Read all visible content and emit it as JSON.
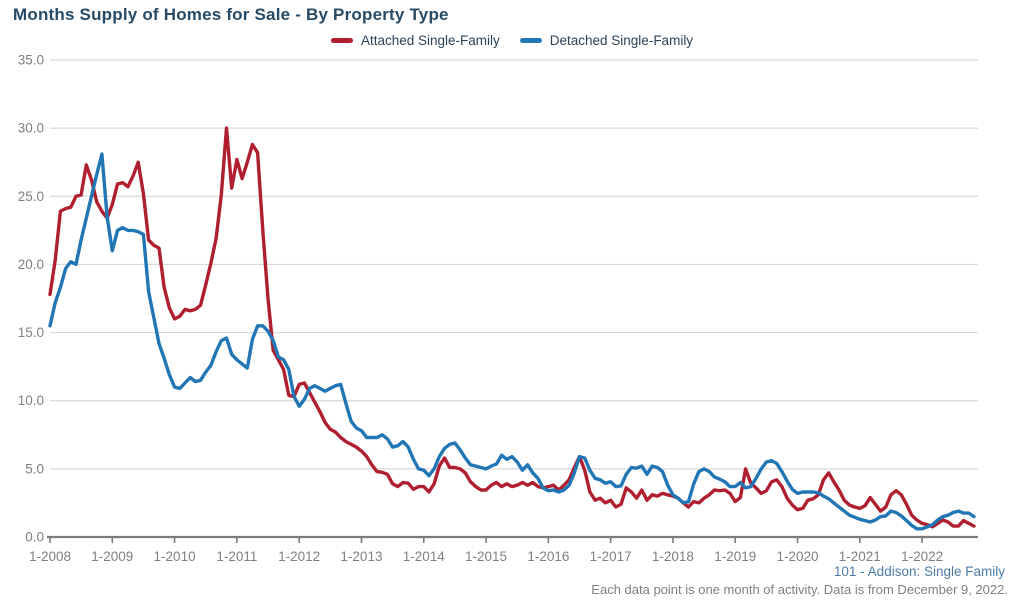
{
  "title": "Months Supply of Homes for Sale - By Property Type",
  "legend": [
    {
      "label": "Attached Single-Family",
      "color": "#b01f30"
    },
    {
      "label": "Detached Single-Family",
      "color": "#2176b5"
    }
  ],
  "footer": {
    "line1": "101 - Addison: Single Family",
    "line2": "Each data point is one month of activity. Data is from December 9, 2022."
  },
  "colors": {
    "attached": "#b01f30",
    "detached": "#2176b5",
    "gridline": "#d9d9d9",
    "axis": "#7a7a7a",
    "axis_text": "#808080",
    "title_text": "#274a66"
  },
  "chart_data": {
    "type": "line",
    "title": "Months Supply of Homes for Sale - By Property Type",
    "xlabel": "",
    "ylabel": "",
    "x_unit": "month",
    "x_range": [
      "1-2008",
      "11-2022"
    ],
    "x_tick_labels": [
      "1-2008",
      "1-2009",
      "1-2010",
      "1-2011",
      "1-2012",
      "1-2013",
      "1-2014",
      "1-2015",
      "1-2016",
      "1-2017",
      "1-2018",
      "1-2019",
      "1-2020",
      "1-2021",
      "1-2022"
    ],
    "y_ticks": [
      0,
      5,
      10,
      15,
      20,
      25,
      30,
      35
    ],
    "y_tick_labels": [
      "0.0",
      "5.0",
      "10.0",
      "15.0",
      "20.0",
      "25.0",
      "30.0",
      "35.0"
    ],
    "ylim": [
      0,
      35
    ],
    "grid": true,
    "legend_position": "top-center",
    "series": [
      {
        "name": "Attached Single-Family",
        "color": "#b01f30",
        "values": [
          17.8,
          20.3,
          23.9,
          24.1,
          24.2,
          25,
          25.1,
          27.3,
          26.2,
          24.6,
          23.9,
          23.4,
          24.4,
          25.9,
          26,
          25.7,
          26.5,
          27.5,
          25.2,
          21.8,
          21.4,
          21.2,
          18.3,
          16.8,
          16,
          16.2,
          16.7,
          16.6,
          16.7,
          17,
          18.5,
          20.1,
          21.9,
          25.1,
          30,
          25.6,
          27.7,
          26.3,
          27.5,
          28.8,
          28.2,
          22.5,
          17.5,
          13.7,
          13,
          12.3,
          10.4,
          10.3,
          11.2,
          11.3,
          10.6,
          9.9,
          9.2,
          8.4,
          7.9,
          7.7,
          7.3,
          7,
          6.8,
          6.6,
          6.3,
          5.9,
          5.3,
          4.8,
          4.75,
          4.6,
          3.9,
          3.7,
          4,
          3.95,
          3.5,
          3.7,
          3.7,
          3.3,
          3.9,
          5.2,
          5.8,
          5.1,
          5.1,
          5,
          4.7,
          4.05,
          3.7,
          3.45,
          3.45,
          3.8,
          4,
          3.7,
          3.9,
          3.7,
          3.8,
          4,
          3.8,
          4,
          3.7,
          3.6,
          3.7,
          3.8,
          3.45,
          3.8,
          4.2,
          5.1,
          5.9,
          4.9,
          3.3,
          2.7,
          2.85,
          2.5,
          2.7,
          2.2,
          2.4,
          3.6,
          3.3,
          2.85,
          3.45,
          2.7,
          3.1,
          3,
          3.2,
          3.1,
          3,
          2.85,
          2.5,
          2.2,
          2.6,
          2.5,
          2.85,
          3.1,
          3.45,
          3.4,
          3.45,
          3.2,
          2.6,
          2.9,
          5,
          3.95,
          3.6,
          3.2,
          3.4,
          4.05,
          4.2,
          3.7,
          2.85,
          2.35,
          2,
          2.1,
          2.7,
          2.8,
          3.1,
          4.2,
          4.7,
          4.05,
          3.45,
          2.7,
          2.35,
          2.2,
          2.1,
          2.3,
          2.9,
          2.4,
          1.9,
          2.2,
          3.1,
          3.4,
          3.1,
          2.4,
          1.6,
          1.25,
          1,
          0.9,
          0.75,
          1,
          1.25,
          1.1,
          0.8,
          0.8,
          1.2,
          1,
          0.8
        ]
      },
      {
        "name": "Detached Single-Family",
        "color": "#2176b5",
        "values": [
          15.5,
          17.2,
          18.3,
          19.7,
          20.2,
          20,
          21.8,
          23.4,
          25,
          26.6,
          28.1,
          23.5,
          21,
          22.5,
          22.7,
          22.5,
          22.5,
          22.4,
          22.2,
          18,
          16.1,
          14.2,
          13.1,
          11.9,
          11,
          10.9,
          11.3,
          11.7,
          11.4,
          11.5,
          12.1,
          12.6,
          13.6,
          14.4,
          14.6,
          13.4,
          13,
          12.7,
          12.4,
          14.5,
          15.5,
          15.5,
          15.1,
          14.4,
          13.2,
          13,
          12.3,
          10.3,
          9.6,
          10.1,
          10.9,
          11.1,
          10.9,
          10.7,
          10.9,
          11.1,
          11.2,
          9.8,
          8.5,
          8,
          7.8,
          7.3,
          7.3,
          7.3,
          7.5,
          7.2,
          6.6,
          6.7,
          7,
          6.6,
          5.7,
          5,
          4.9,
          4.5,
          5,
          5.9,
          6.5,
          6.8,
          6.9,
          6.4,
          5.8,
          5.3,
          5.2,
          5.1,
          5,
          5.2,
          5.35,
          6,
          5.7,
          5.9,
          5.5,
          4.9,
          5.3,
          4.7,
          4.3,
          3.6,
          3.4,
          3.45,
          3.3,
          3.45,
          3.8,
          4.7,
          5.9,
          5.8,
          4.9,
          4.3,
          4.2,
          3.95,
          4.05,
          3.7,
          3.75,
          4.6,
          5.1,
          5.05,
          5.2,
          4.6,
          5.2,
          5.1,
          4.8,
          3.8,
          3.1,
          2.85,
          2.5,
          2.6,
          3.9,
          4.8,
          5,
          4.8,
          4.4,
          4.25,
          4.05,
          3.7,
          3.7,
          4,
          3.6,
          3.7,
          4.3,
          5,
          5.5,
          5.6,
          5.4,
          4.8,
          4.1,
          3.5,
          3.2,
          3.3,
          3.3,
          3.3,
          3.25,
          3,
          2.8,
          2.5,
          2.2,
          1.9,
          1.6,
          1.45,
          1.3,
          1.2,
          1.1,
          1.25,
          1.5,
          1.55,
          1.9,
          1.8,
          1.55,
          1.2,
          0.85,
          0.6,
          0.6,
          0.75,
          0.9,
          1.25,
          1.5,
          1.6,
          1.8,
          1.9,
          1.75,
          1.75,
          1.5
        ]
      }
    ]
  }
}
